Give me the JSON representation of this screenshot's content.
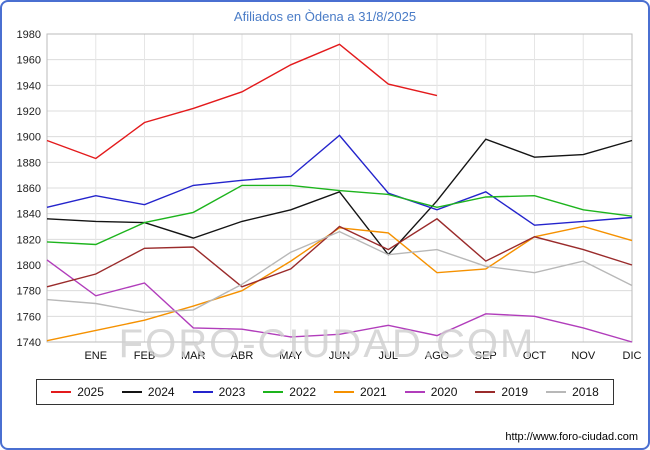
{
  "page": {
    "title": "Afiliados en Òdena a 31/8/2025",
    "watermark": "FORO-CIUDAD.COM",
    "url": "http://www.foro-ciudad.com",
    "frame_border_color": "#4a6fd1",
    "title_color": "#4a7cc7",
    "grid_color": "#dcdcdc",
    "plot_border_color": "#bbbbbb"
  },
  "chart_data": {
    "type": "line",
    "title": "Afiliados en Òdena a 31/8/2025",
    "categories": [
      "ENE",
      "FEB",
      "MAR",
      "ABR",
      "MAY",
      "JUN",
      "JUL",
      "AGO",
      "SEP",
      "OCT",
      "NOV",
      "DIC"
    ],
    "ylim": [
      1740,
      1980
    ],
    "yticks": [
      1740,
      1760,
      1780,
      1800,
      1820,
      1840,
      1860,
      1880,
      1900,
      1920,
      1940,
      1960,
      1980
    ],
    "grid": true,
    "legend_position": "bottom",
    "note": "start = value drawn at the left axis (previous December) before the ENE point; 2025 runs ENE-AGO only (data to 31/8/2025)",
    "series": [
      {
        "name": "2025",
        "color": "#e31a1c",
        "start": 1897,
        "values": [
          1883,
          1911,
          1922,
          1935,
          1956,
          1972,
          1941,
          1932
        ]
      },
      {
        "name": "2024",
        "color": "#141414",
        "start": 1836,
        "values": [
          1834,
          1833,
          1821,
          1834,
          1843,
          1857,
          1808,
          1850,
          1898,
          1884,
          1886,
          1897
        ]
      },
      {
        "name": "2023",
        "color": "#2424cc",
        "start": 1845,
        "values": [
          1854,
          1847,
          1862,
          1866,
          1869,
          1901,
          1856,
          1843,
          1857,
          1831,
          1834,
          1837
        ]
      },
      {
        "name": "2022",
        "color": "#1db41d",
        "start": 1818,
        "values": [
          1816,
          1833,
          1841,
          1862,
          1862,
          1858,
          1855,
          1845,
          1853,
          1854,
          1843,
          1838
        ]
      },
      {
        "name": "2021",
        "color": "#f59100",
        "start": 1741,
        "values": [
          1749,
          1757,
          1768,
          1780,
          1803,
          1829,
          1825,
          1794,
          1797,
          1822,
          1830,
          1819
        ]
      },
      {
        "name": "2020",
        "color": "#b13dbb",
        "start": 1804,
        "values": [
          1776,
          1786,
          1751,
          1750,
          1744,
          1746,
          1753,
          1745,
          1762,
          1760,
          1751,
          1740
        ]
      },
      {
        "name": "2019",
        "color": "#9a2b2b",
        "start": 1783,
        "values": [
          1793,
          1813,
          1814,
          1783,
          1797,
          1830,
          1812,
          1836,
          1803,
          1822,
          1812,
          1800
        ]
      },
      {
        "name": "2018",
        "color": "#b8b8b8",
        "start": 1773,
        "values": [
          1770,
          1763,
          1765,
          1785,
          1810,
          1826,
          1808,
          1812,
          1799,
          1794,
          1803,
          1784
        ]
      }
    ]
  }
}
